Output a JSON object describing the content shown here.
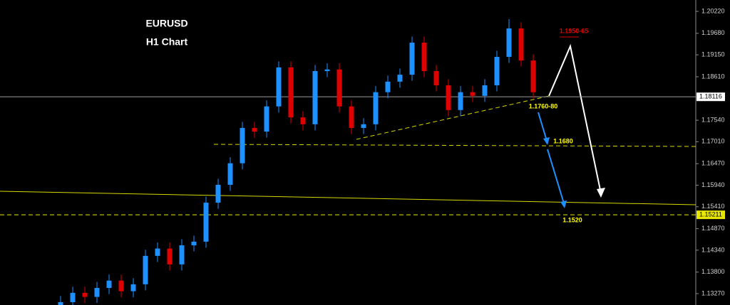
{
  "chart_data": {
    "type": "candlestick",
    "title": "EURUSD",
    "subtitle": "H1 Chart",
    "annotations": [
      "1.1950-65",
      "1.1760-80",
      "1.1680",
      "1.1520"
    ],
    "up_color": "#1e90ff",
    "down_color": "#e00000",
    "ylim": [
      1.1299,
      1.205
    ],
    "yticks": [
      {
        "value": 1.2022,
        "label": "1.20220"
      },
      {
        "value": 1.1968,
        "label": "1.19680"
      },
      {
        "value": 1.1915,
        "label": "1.19150"
      },
      {
        "value": 1.1861,
        "label": "1.18610"
      },
      {
        "value": 1.1754,
        "label": "1.17540"
      },
      {
        "value": 1.1701,
        "label": "1.17010"
      },
      {
        "value": 1.1647,
        "label": "1.16470"
      },
      {
        "value": 1.1594,
        "label": "1.15940"
      },
      {
        "value": 1.1541,
        "label": "1.15410"
      },
      {
        "value": 1.1487,
        "label": "1.14870"
      },
      {
        "value": 1.1434,
        "label": "1.14340"
      },
      {
        "value": 1.138,
        "label": "1.13800"
      },
      {
        "value": 1.1327,
        "label": "1.13270"
      }
    ],
    "hlines": [
      {
        "value": 1.18116,
        "color": "#9a9a9a",
        "style": "solid",
        "box": "#ffffff"
      },
      {
        "value": 1.15211,
        "color": "#e6e600",
        "style": "dashed",
        "box": "#e6e600"
      }
    ],
    "open": [
      1.1298,
      1.1306,
      1.1329,
      1.1319,
      1.1341,
      1.1359,
      1.1333,
      1.135,
      1.142,
      1.1438,
      1.1399,
      1.1446,
      1.1455,
      1.1551,
      1.1595,
      1.1648,
      1.1735,
      1.1726,
      1.1788,
      1.1884,
      1.1761,
      1.1744,
      1.1875,
      1.1879,
      1.1788,
      1.1735,
      1.1744,
      1.1823,
      1.1849,
      1.1866,
      1.1945,
      1.1875,
      1.184,
      1.1779,
      1.1823,
      1.1814,
      1.184,
      1.191,
      1.198,
      1.1901
    ],
    "high": [
      1.1321,
      1.1344,
      1.1344,
      1.1356,
      1.1374,
      1.1374,
      1.1365,
      1.1435,
      1.1453,
      1.1453,
      1.1461,
      1.147,
      1.1566,
      1.161,
      1.1663,
      1.175,
      1.175,
      1.1803,
      1.1899,
      1.1899,
      1.1776,
      1.189,
      1.1894,
      1.1894,
      1.1803,
      1.1759,
      1.1838,
      1.1864,
      1.1881,
      1.196,
      1.196,
      1.189,
      1.1855,
      1.1838,
      1.1838,
      1.1855,
      1.1925,
      1.2003,
      1.1995,
      1.1916
    ],
    "low": [
      1.1283,
      1.1291,
      1.1304,
      1.1304,
      1.1326,
      1.1318,
      1.1318,
      1.1335,
      1.1405,
      1.1384,
      1.1384,
      1.1431,
      1.144,
      1.1536,
      1.158,
      1.1633,
      1.1711,
      1.1711,
      1.1773,
      1.1746,
      1.1729,
      1.1729,
      1.186,
      1.1773,
      1.172,
      1.172,
      1.1729,
      1.1808,
      1.1834,
      1.1851,
      1.186,
      1.1825,
      1.1764,
      1.1764,
      1.1799,
      1.1799,
      1.1825,
      1.1895,
      1.1886,
      1.1808
    ],
    "close": [
      1.1306,
      1.1329,
      1.1319,
      1.1341,
      1.1359,
      1.1333,
      1.135,
      1.142,
      1.1438,
      1.1399,
      1.1446,
      1.1455,
      1.1551,
      1.1595,
      1.1648,
      1.1735,
      1.1726,
      1.1788,
      1.1884,
      1.1761,
      1.1744,
      1.1875,
      1.1879,
      1.1788,
      1.1735,
      1.1744,
      1.1823,
      1.1849,
      1.1866,
      1.1945,
      1.1875,
      1.184,
      1.1779,
      1.1823,
      1.1814,
      1.184,
      1.191,
      1.198,
      1.1901,
      1.1823
    ]
  }
}
